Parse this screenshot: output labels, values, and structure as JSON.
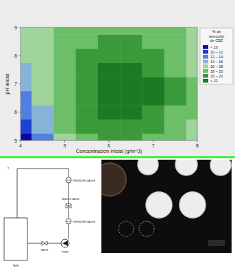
{
  "chart_data": {
    "type": "contour",
    "x_label": "Concentración inicial (g/m^3)",
    "y_label": "pH inicial",
    "x": [
      4,
      4.5,
      5,
      5.5,
      6,
      6.5,
      7,
      7.5,
      8
    ],
    "y": [
      5,
      5.5,
      6,
      6.5,
      7,
      7.5,
      8,
      8.5,
      9
    ],
    "z": [
      [
        9,
        13,
        17,
        19,
        20.5,
        20.5,
        19.5,
        18.5,
        17
      ],
      [
        10.5,
        14.5,
        18,
        20,
        21.5,
        21.5,
        20.5,
        19,
        17.5
      ],
      [
        12,
        15.5,
        18.5,
        20.5,
        22.2,
        22.5,
        21.5,
        19.5,
        18
      ],
      [
        13.5,
        16.5,
        19,
        21,
        22.5,
        23,
        22,
        20,
        18
      ],
      [
        14.5,
        17,
        19.5,
        21,
        22.5,
        22.8,
        22,
        20,
        18
      ],
      [
        15.5,
        17.5,
        19.5,
        20.8,
        22,
        22,
        21.5,
        19.5,
        17.8
      ],
      [
        16,
        17.5,
        19.3,
        20.3,
        21,
        21,
        20.5,
        19,
        17.5
      ],
      [
        16.5,
        17.5,
        19,
        19.8,
        20.2,
        20.2,
        19.8,
        18.5,
        17.2
      ],
      [
        16.5,
        17.5,
        18.5,
        19,
        19.3,
        19.3,
        19,
        18,
        17
      ]
    ],
    "xlim": [
      4,
      8
    ],
    "ylim": [
      5,
      9
    ],
    "xticks": [
      4,
      5,
      6,
      7,
      8
    ],
    "yticks": [
      5,
      6,
      7,
      8,
      9
    ],
    "color_bar": {
      "title": [
        "% de",
        "remoción",
        "de CBZ"
      ],
      "bounds": [
        10,
        12,
        14,
        16,
        18,
        20,
        22
      ],
      "labels": [
        "< 10",
        "10 – 12",
        "12 – 14",
        "14 – 16",
        "16 – 18",
        "18 – 20",
        "20 – 22",
        "> 22"
      ],
      "colors": [
        "#0a0a9e",
        "#1f3fd6",
        "#4f7fe0",
        "#86b4d8",
        "#9fd49a",
        "#6cbf68",
        "#3a9a3a",
        "#1d7a22"
      ]
    }
  },
  "diagram": {
    "labels": [
      "PRESSURE GAUGE",
      "NEEDLE VALVE",
      "PRESSURE GAUGE",
      "VALVE",
      "PUMP",
      "TANK"
    ]
  }
}
